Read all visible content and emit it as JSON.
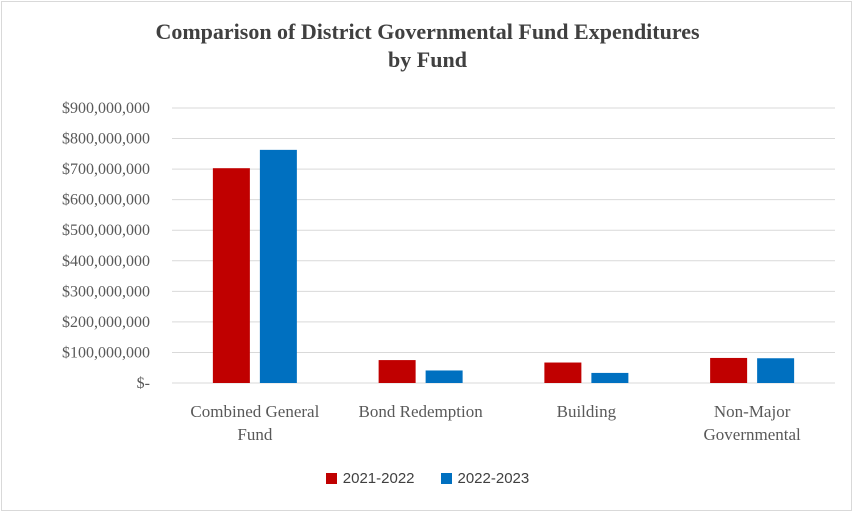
{
  "colors": {
    "series1": "#c00000",
    "series2": "#0070c0",
    "grid": "#d9d9d9",
    "text": "#595959"
  },
  "chart_data": {
    "type": "bar",
    "title_lines": [
      "Comparison of District Governmental Fund Expenditures",
      "by Fund"
    ],
    "categories": [
      [
        "Combined General",
        "Fund"
      ],
      [
        "Bond Redemption"
      ],
      [
        "Building"
      ],
      [
        "Non-Major",
        "Governmental"
      ]
    ],
    "series": [
      {
        "name": "2021-2022",
        "values": [
          703000000,
          75000000,
          67000000,
          82000000
        ]
      },
      {
        "name": "2022-2023",
        "values": [
          763000000,
          41000000,
          33000000,
          81000000
        ]
      }
    ],
    "ylim": [
      0,
      900000000
    ],
    "yticks": [
      0,
      100000000,
      200000000,
      300000000,
      400000000,
      500000000,
      600000000,
      700000000,
      800000000,
      900000000
    ],
    "ytick_labels": [
      "$-",
      "$100,000,000",
      "$200,000,000",
      "$300,000,000",
      "$400,000,000",
      "$500,000,000",
      "$600,000,000",
      "$700,000,000",
      "$800,000,000",
      "$900,000,000"
    ],
    "grid": true,
    "legend_position": "bottom"
  }
}
